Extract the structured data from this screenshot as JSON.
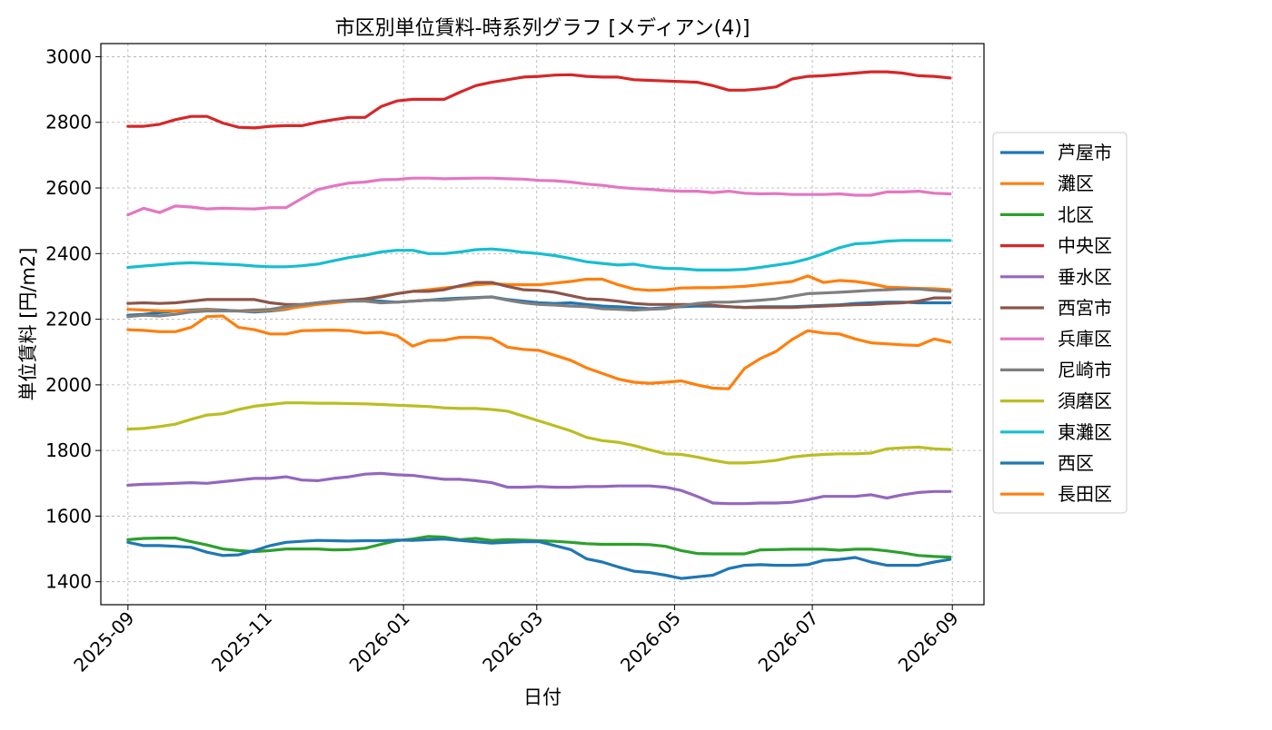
{
  "chart_data": {
    "type": "line",
    "title": "市区別単位賃料-時系列グラフ [メディアン(4)]",
    "xlabel": "日付",
    "ylabel": "単位賃料 [円/m2]",
    "ylim": [
      1330,
      3040
    ],
    "yticks": [
      1400,
      1600,
      1800,
      2000,
      2200,
      2400,
      2600,
      2800,
      3000
    ],
    "xlim": [
      "2025-08-20",
      "2026-09-15"
    ],
    "xticks": [
      "2025-09",
      "2025-11",
      "2026-01",
      "2026-03",
      "2026-05",
      "2026-07",
      "2026-09"
    ],
    "grid": true,
    "legend_position": "right",
    "x": [
      "2025-09-01",
      "2025-09-08",
      "2025-09-15",
      "2025-09-22",
      "2025-09-29",
      "2025-10-06",
      "2025-10-13",
      "2025-10-20",
      "2025-10-27",
      "2025-11-03",
      "2025-11-10",
      "2025-11-17",
      "2025-11-24",
      "2025-12-01",
      "2025-12-08",
      "2025-12-15",
      "2025-12-22",
      "2025-12-29",
      "2026-01-05",
      "2026-01-12",
      "2026-01-19",
      "2026-01-26",
      "2026-02-02",
      "2026-02-09",
      "2026-02-16",
      "2026-02-23",
      "2026-03-02",
      "2026-03-09",
      "2026-03-16",
      "2026-03-23",
      "2026-03-30",
      "2026-04-06",
      "2026-04-13",
      "2026-04-20",
      "2026-04-27",
      "2026-05-04",
      "2026-05-11",
      "2026-05-18",
      "2026-05-25",
      "2026-06-01",
      "2026-06-08",
      "2026-06-15",
      "2026-06-22",
      "2026-06-29",
      "2026-07-06",
      "2026-07-13",
      "2026-07-20",
      "2026-07-27",
      "2026-08-03",
      "2026-08-10",
      "2026-08-17",
      "2026-08-24",
      "2026-08-31"
    ],
    "series": [
      {
        "name": "芦屋市",
        "color": "#1f77b4",
        "values": [
          2212,
          2215,
          2220,
          2225,
          2228,
          2230,
          2228,
          2225,
          2222,
          2225,
          2230,
          2240,
          2248,
          2252,
          2255,
          2258,
          2255,
          2252,
          2255,
          2258,
          2262,
          2264,
          2266,
          2268,
          2260,
          2255,
          2250,
          2248,
          2250,
          2245,
          2240,
          2238,
          2235,
          2232,
          2235,
          2238,
          2240,
          2240,
          2238,
          2236,
          2238,
          2238,
          2238,
          2240,
          2242,
          2244,
          2248,
          2250,
          2252,
          2252,
          2250,
          2250,
          2250
        ]
      },
      {
        "name": "灘区",
        "color": "#ff7f0e",
        "values": [
          2230,
          2228,
          2226,
          2225,
          2225,
          2228,
          2226,
          2225,
          2225,
          2228,
          2232,
          2238,
          2245,
          2250,
          2255,
          2262,
          2270,
          2278,
          2285,
          2290,
          2295,
          2300,
          2305,
          2308,
          2306,
          2305,
          2305,
          2310,
          2315,
          2322,
          2322,
          2305,
          2292,
          2288,
          2290,
          2295,
          2296,
          2296,
          2298,
          2300,
          2305,
          2310,
          2315,
          2332,
          2312,
          2318,
          2315,
          2308,
          2298,
          2296,
          2294,
          2293,
          2290
        ]
      },
      {
        "name": "北区",
        "color": "#2ca02c",
        "values": [
          1528,
          1532,
          1533,
          1533,
          1522,
          1512,
          1500,
          1495,
          1492,
          1495,
          1500,
          1500,
          1500,
          1497,
          1498,
          1502,
          1514,
          1525,
          1530,
          1538,
          1536,
          1528,
          1532,
          1526,
          1528,
          1527,
          1525,
          1523,
          1520,
          1516,
          1514,
          1514,
          1514,
          1513,
          1508,
          1495,
          1486,
          1485,
          1485,
          1485,
          1497,
          1498,
          1499,
          1499,
          1499,
          1496,
          1499,
          1499,
          1494,
          1488,
          1480,
          1477,
          1475
        ]
      },
      {
        "name": "中央区",
        "color": "#d62728",
        "values": [
          2788,
          2788,
          2794,
          2808,
          2818,
          2818,
          2798,
          2785,
          2783,
          2788,
          2790,
          2790,
          2800,
          2808,
          2815,
          2815,
          2848,
          2865,
          2870,
          2870,
          2870,
          2892,
          2912,
          2922,
          2930,
          2938,
          2940,
          2944,
          2945,
          2940,
          2938,
          2938,
          2930,
          2928,
          2926,
          2924,
          2922,
          2912,
          2898,
          2898,
          2902,
          2908,
          2932,
          2940,
          2942,
          2946,
          2950,
          2954,
          2954,
          2950,
          2942,
          2940,
          2935
        ]
      },
      {
        "name": "垂水区",
        "color": "#9467bd",
        "values": [
          1694,
          1697,
          1698,
          1700,
          1702,
          1700,
          1705,
          1710,
          1715,
          1715,
          1720,
          1710,
          1708,
          1715,
          1720,
          1728,
          1730,
          1726,
          1724,
          1718,
          1712,
          1712,
          1708,
          1702,
          1688,
          1688,
          1690,
          1688,
          1688,
          1690,
          1690,
          1692,
          1692,
          1692,
          1688,
          1678,
          1660,
          1640,
          1638,
          1638,
          1640,
          1640,
          1642,
          1650,
          1660,
          1660,
          1660,
          1665,
          1655,
          1665,
          1672,
          1675,
          1675
        ]
      },
      {
        "name": "西宮市",
        "color": "#8c564b",
        "values": [
          2248,
          2250,
          2248,
          2250,
          2255,
          2260,
          2260,
          2260,
          2260,
          2250,
          2245,
          2245,
          2250,
          2255,
          2258,
          2262,
          2268,
          2278,
          2285,
          2285,
          2290,
          2302,
          2312,
          2312,
          2300,
          2290,
          2288,
          2282,
          2272,
          2262,
          2260,
          2255,
          2248,
          2245,
          2245,
          2245,
          2245,
          2242,
          2238,
          2236,
          2236,
          2236,
          2236,
          2238,
          2240,
          2242,
          2244,
          2245,
          2248,
          2250,
          2255,
          2265,
          2265
        ]
      },
      {
        "name": "兵庫区",
        "color": "#e377c2",
        "values": [
          2518,
          2538,
          2525,
          2545,
          2542,
          2536,
          2538,
          2537,
          2536,
          2540,
          2540,
          2568,
          2595,
          2606,
          2615,
          2618,
          2625,
          2626,
          2630,
          2630,
          2628,
          2629,
          2630,
          2630,
          2628,
          2627,
          2623,
          2622,
          2618,
          2612,
          2608,
          2602,
          2598,
          2596,
          2592,
          2590,
          2590,
          2586,
          2590,
          2584,
          2582,
          2583,
          2580,
          2580,
          2580,
          2582,
          2578,
          2578,
          2588,
          2588,
          2590,
          2584,
          2582
        ]
      },
      {
        "name": "尼崎市",
        "color": "#7f7f7f",
        "values": [
          2208,
          2212,
          2210,
          2215,
          2222,
          2225,
          2225,
          2225,
          2228,
          2230,
          2238,
          2245,
          2250,
          2255,
          2255,
          2255,
          2250,
          2252,
          2255,
          2258,
          2258,
          2262,
          2265,
          2268,
          2258,
          2250,
          2245,
          2243,
          2240,
          2238,
          2232,
          2230,
          2228,
          2230,
          2232,
          2240,
          2248,
          2252,
          2252,
          2255,
          2258,
          2262,
          2270,
          2278,
          2280,
          2282,
          2285,
          2288,
          2290,
          2292,
          2292,
          2288,
          2285
        ]
      },
      {
        "name": "須磨区",
        "color": "#bcbd22",
        "values": [
          1865,
          1867,
          1873,
          1880,
          1895,
          1908,
          1912,
          1925,
          1935,
          1940,
          1945,
          1945,
          1944,
          1944,
          1943,
          1942,
          1940,
          1938,
          1936,
          1934,
          1930,
          1928,
          1928,
          1925,
          1920,
          1905,
          1890,
          1875,
          1860,
          1840,
          1830,
          1825,
          1815,
          1802,
          1790,
          1788,
          1780,
          1770,
          1762,
          1762,
          1765,
          1770,
          1780,
          1785,
          1788,
          1790,
          1790,
          1792,
          1805,
          1808,
          1810,
          1805,
          1803
        ]
      },
      {
        "name": "東灘区",
        "color": "#17becf",
        "values": [
          2358,
          2362,
          2366,
          2370,
          2372,
          2370,
          2368,
          2366,
          2362,
          2360,
          2360,
          2363,
          2368,
          2378,
          2388,
          2395,
          2405,
          2410,
          2410,
          2400,
          2400,
          2405,
          2412,
          2414,
          2410,
          2404,
          2400,
          2394,
          2385,
          2375,
          2370,
          2365,
          2368,
          2360,
          2355,
          2354,
          2350,
          2350,
          2350,
          2352,
          2358,
          2365,
          2372,
          2384,
          2400,
          2418,
          2430,
          2432,
          2438,
          2440,
          2440,
          2440,
          2440
        ]
      },
      {
        "name": "西区",
        "color": "#1f77b4",
        "values": [
          1520,
          1510,
          1510,
          1508,
          1505,
          1490,
          1480,
          1482,
          1495,
          1510,
          1520,
          1523,
          1526,
          1525,
          1524,
          1525,
          1525,
          1527,
          1526,
          1528,
          1530,
          1526,
          1522,
          1518,
          1520,
          1522,
          1522,
          1510,
          1498,
          1470,
          1460,
          1445,
          1432,
          1428,
          1420,
          1410,
          1415,
          1420,
          1440,
          1450,
          1452,
          1450,
          1450,
          1452,
          1465,
          1468,
          1474,
          1460,
          1450,
          1450,
          1450,
          1460,
          1468
        ]
      },
      {
        "name": "長田区",
        "color": "#ff7f0e",
        "values": [
          2168,
          2166,
          2162,
          2162,
          2175,
          2208,
          2210,
          2175,
          2168,
          2155,
          2155,
          2165,
          2166,
          2167,
          2165,
          2158,
          2160,
          2150,
          2118,
          2135,
          2136,
          2145,
          2145,
          2142,
          2115,
          2108,
          2105,
          2090,
          2075,
          2052,
          2035,
          2018,
          2008,
          2005,
          2008,
          2012,
          2000,
          1990,
          1988,
          2050,
          2080,
          2102,
          2138,
          2165,
          2158,
          2155,
          2140,
          2128,
          2125,
          2122,
          2120,
          2140,
          2130
        ]
      }
    ]
  }
}
